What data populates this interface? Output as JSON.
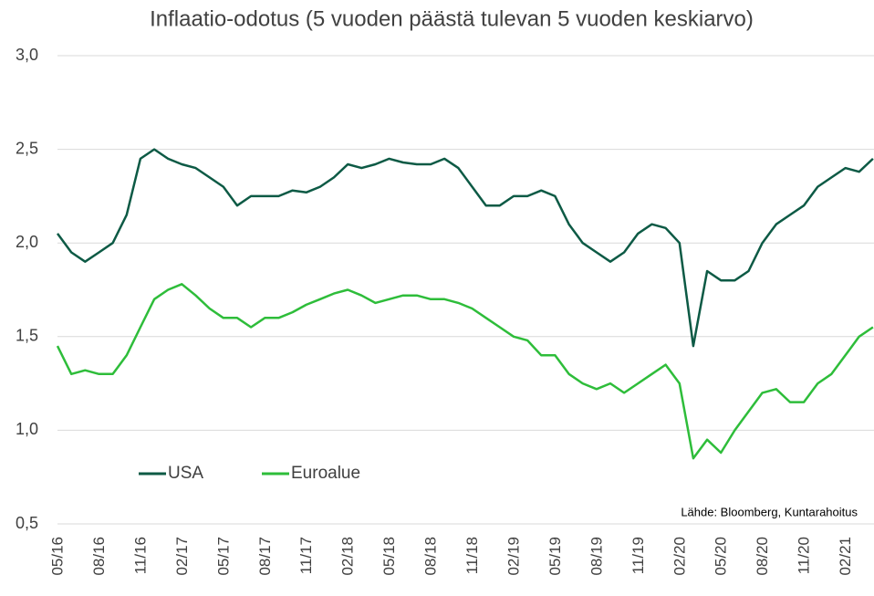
{
  "chart_data": {
    "type": "line",
    "title": "Inflaatio-odotus (5 vuoden päästä tulevan 5 vuoden keskiarvo)",
    "annotation": "Lähde: Bloomberg, Kuntarahoitus",
    "categories": [
      "05/16",
      null,
      null,
      "08/16",
      null,
      null,
      "11/16",
      null,
      null,
      "02/17",
      null,
      null,
      "05/17",
      null,
      null,
      "08/17",
      null,
      null,
      "11/17",
      null,
      null,
      "02/18",
      null,
      null,
      "05/18",
      null,
      null,
      "08/18",
      null,
      null,
      "11/18",
      null,
      null,
      "02/19",
      null,
      null,
      "05/19",
      null,
      null,
      "08/19",
      null,
      null,
      "11/19",
      null,
      null,
      "02/20",
      null,
      null,
      "05/20",
      null,
      null,
      "08/20",
      null,
      null,
      "11/20",
      null,
      null,
      "02/21",
      null,
      null
    ],
    "series": [
      {
        "name": "USA",
        "color": "#0d5a45",
        "values": [
          2.05,
          1.95,
          1.9,
          1.95,
          2.0,
          2.15,
          2.45,
          2.5,
          2.45,
          2.42,
          2.4,
          2.35,
          2.3,
          2.2,
          2.25,
          2.25,
          2.25,
          2.28,
          2.27,
          2.3,
          2.35,
          2.42,
          2.4,
          2.42,
          2.45,
          2.43,
          2.42,
          2.42,
          2.45,
          2.4,
          2.3,
          2.2,
          2.2,
          2.25,
          2.25,
          2.28,
          2.25,
          2.1,
          2.0,
          1.95,
          1.9,
          1.95,
          2.05,
          2.1,
          2.08,
          2.0,
          1.45,
          1.85,
          1.8,
          1.8,
          1.85,
          2.0,
          2.1,
          2.15,
          2.2,
          2.3,
          2.35,
          2.4,
          2.38,
          2.45
        ]
      },
      {
        "name": "Euroalue",
        "color": "#2ebd3a",
        "values": [
          1.45,
          1.3,
          1.32,
          1.3,
          1.3,
          1.4,
          1.55,
          1.7,
          1.75,
          1.78,
          1.72,
          1.65,
          1.6,
          1.6,
          1.55,
          1.6,
          1.6,
          1.63,
          1.67,
          1.7,
          1.73,
          1.75,
          1.72,
          1.68,
          1.7,
          1.72,
          1.72,
          1.7,
          1.7,
          1.68,
          1.65,
          1.6,
          1.55,
          1.5,
          1.48,
          1.4,
          1.4,
          1.3,
          1.25,
          1.22,
          1.25,
          1.2,
          1.25,
          1.3,
          1.35,
          1.25,
          0.85,
          0.95,
          0.88,
          1.0,
          1.1,
          1.2,
          1.22,
          1.15,
          1.15,
          1.25,
          1.3,
          1.4,
          1.5,
          1.55
        ]
      }
    ],
    "ylim": [
      0.5,
      3.0
    ],
    "yticks": [
      {
        "value": 0.5,
        "label": "0,5"
      },
      {
        "value": 1.0,
        "label": "1,0"
      },
      {
        "value": 1.5,
        "label": "1,5"
      },
      {
        "value": 2.0,
        "label": "2,0"
      },
      {
        "value": 2.5,
        "label": "2,5"
      },
      {
        "value": 3.0,
        "label": "3,0"
      }
    ],
    "grid": true,
    "legend": "lower left"
  }
}
